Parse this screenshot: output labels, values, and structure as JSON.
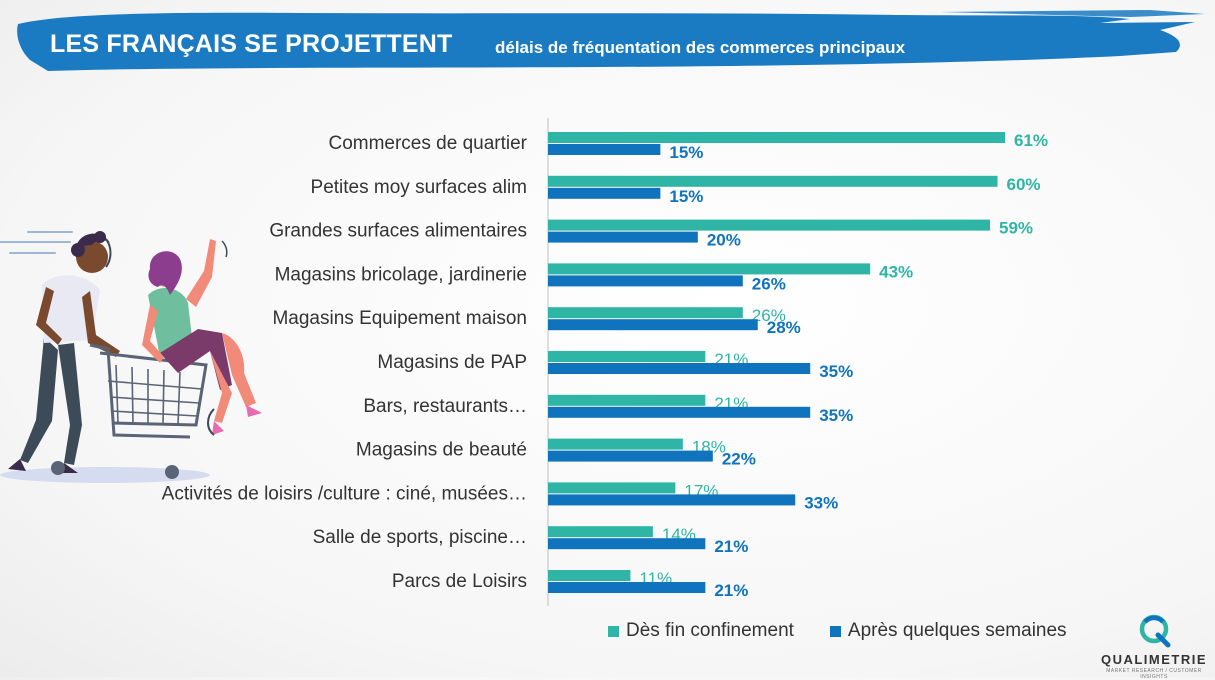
{
  "header": {
    "title": "LES FRANÇAIS SE PROJETTENT",
    "subtitle": "délais de fréquentation des commerces principaux"
  },
  "colors": {
    "banner": "#1a7ac2",
    "series_1": "#2fb5a5",
    "series_2": "#0f74bd",
    "text": "#333333"
  },
  "chart_data": {
    "type": "bar",
    "orientation": "horizontal",
    "categories": [
      "Commerces de quartier",
      "Petites moy surfaces alim",
      "Grandes surfaces alimentaires",
      "Magasins bricolage, jardinerie",
      "Magasins Equipement maison",
      "Magasins de PAP",
      "Bars, restaurants…",
      "Magasins de beauté",
      "Activités de loisirs /culture : ciné, musées…",
      "Salle de sports, piscine…",
      "Parcs de Loisirs"
    ],
    "series": [
      {
        "name": "Dès fin confinement",
        "values": [
          61,
          60,
          59,
          43,
          26,
          21,
          21,
          18,
          17,
          14,
          11
        ],
        "labels": [
          "61%",
          "60%",
          "59%",
          "43%",
          "26%",
          "21%",
          "21%",
          "18%",
          "17%",
          "14%",
          "11%"
        ]
      },
      {
        "name": "Après quelques semaines",
        "values": [
          15,
          15,
          20,
          26,
          28,
          35,
          35,
          22,
          33,
          21,
          21
        ],
        "labels": [
          "15%",
          "15%",
          "20%",
          "26%",
          "28%",
          "35%",
          "35%",
          "22%",
          "33%",
          "21%",
          "21%"
        ]
      }
    ],
    "xlim": [
      0,
      61
    ],
    "grid": false,
    "legend_position": "bottom-right"
  },
  "logo": {
    "name": "QUALIMETRIE",
    "tagline": "MARKET RESEARCH / CUSTOMER INSIGHTS"
  }
}
